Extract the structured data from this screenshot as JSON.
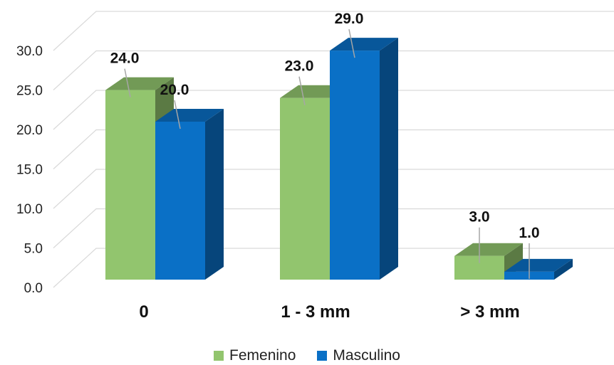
{
  "chart_data": {
    "type": "bar",
    "categories": [
      "0",
      "1 - 3 mm",
      "> 3 mm"
    ],
    "series": [
      {
        "name": "Femenino",
        "values": [
          24.0,
          23.0,
          3.0
        ],
        "color": "#92C56E"
      },
      {
        "name": "Masculino",
        "values": [
          20.0,
          29.0,
          1.0
        ],
        "color": "#0A70C6"
      }
    ],
    "data_labels": [
      [
        "24.0",
        "23.0",
        "3.0"
      ],
      [
        "20.0",
        "29.0",
        "1.0"
      ]
    ],
    "yticks": [
      "0.0",
      "5.0",
      "10.0",
      "15.0",
      "20.0",
      "25.0",
      "30.0"
    ],
    "ylim": [
      0,
      30
    ],
    "grid": true,
    "three_d": true,
    "legend_position": "bottom"
  }
}
